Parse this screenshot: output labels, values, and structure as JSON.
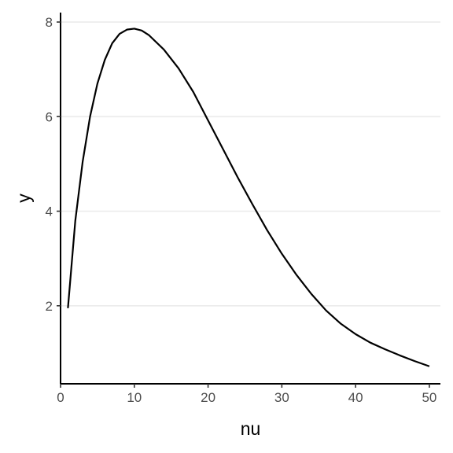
{
  "chart_data": {
    "type": "line",
    "title": "",
    "xlabel": "nu",
    "ylabel": "y",
    "xlim": [
      0,
      51.5
    ],
    "ylim": [
      0.35,
      8.2
    ],
    "x_ticks": [
      0,
      10,
      20,
      30,
      40,
      50
    ],
    "y_ticks": [
      2,
      4,
      6,
      8
    ],
    "grid": {
      "major_y": true,
      "major_x": false
    },
    "line_color": "#000000",
    "grid_color": "#ebebeb",
    "series": [
      {
        "x": [
          1,
          2,
          3,
          4,
          5,
          6,
          7,
          8,
          9,
          10,
          11,
          12,
          14,
          16,
          18,
          20,
          22,
          24,
          26,
          28,
          30,
          32,
          34,
          36,
          38,
          40,
          42,
          44,
          46,
          48,
          50
        ],
        "y": [
          1.95,
          3.8,
          5.05,
          6.0,
          6.7,
          7.2,
          7.55,
          7.75,
          7.84,
          7.86,
          7.82,
          7.72,
          7.42,
          7.02,
          6.52,
          5.92,
          5.32,
          4.72,
          4.15,
          3.6,
          3.1,
          2.65,
          2.25,
          1.9,
          1.62,
          1.4,
          1.22,
          1.08,
          0.95,
          0.83,
          0.72
        ]
      }
    ]
  }
}
